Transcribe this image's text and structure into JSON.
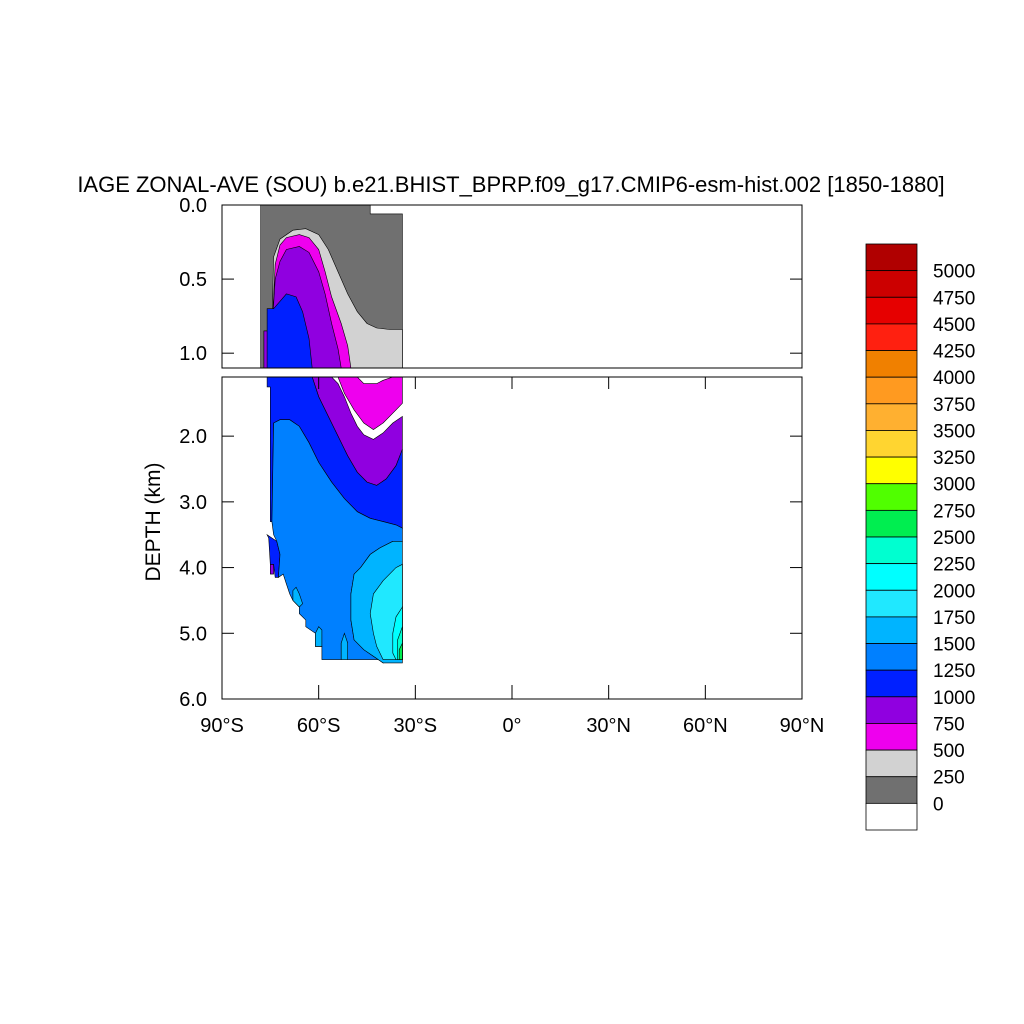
{
  "chart_data": {
    "type": "heatmap",
    "title": "IAGE ZONAL-AVE (SOU) b.e21.BHIST_BPRP.f09_g17.CMIP6-esm-hist.002 [1850-1880]",
    "xlabel": "",
    "ylabel": "DEPTH (km)",
    "xlim": [
      -90,
      90
    ],
    "upper_panel": {
      "ylim": [
        0.0,
        1.1
      ],
      "yticks": [
        {
          "value": 0.0,
          "label": "0.0"
        },
        {
          "value": 0.5,
          "label": "0.5"
        },
        {
          "value": 1.0,
          "label": "1.0"
        }
      ]
    },
    "lower_panel": {
      "ylim": [
        1.1,
        6.0
      ],
      "yticks": [
        {
          "value": 2.0,
          "label": "2.0"
        },
        {
          "value": 3.0,
          "label": "3.0"
        },
        {
          "value": 4.0,
          "label": "4.0"
        },
        {
          "value": 5.0,
          "label": "5.0"
        },
        {
          "value": 6.0,
          "label": "6.0"
        }
      ]
    },
    "xticks": [
      {
        "value": -90,
        "label": "90°S"
      },
      {
        "value": -60,
        "label": "60°S"
      },
      {
        "value": -30,
        "label": "30°S"
      },
      {
        "value": 0,
        "label": "0°"
      },
      {
        "value": 30,
        "label": "30°N"
      },
      {
        "value": 60,
        "label": "60°N"
      },
      {
        "value": 90,
        "label": "90°N"
      }
    ],
    "colorbar": {
      "labels": [
        "5000",
        "4750",
        "4500",
        "4250",
        "4000",
        "3750",
        "3500",
        "3250",
        "3000",
        "2750",
        "2500",
        "2250",
        "2000",
        "1750",
        "1500",
        "1250",
        "1000",
        "750",
        "500",
        "250",
        "0"
      ],
      "colors": [
        "#b00000",
        "#cc0000",
        "#e60000",
        "#ff2010",
        "#f08000",
        "#ff9a20",
        "#ffb030",
        "#ffd530",
        "#ffff00",
        "#50ff00",
        "#00ee50",
        "#00ffd0",
        "#00ffff",
        "#20e8ff",
        "#00b4ff",
        "#0080ff",
        "#0020ff",
        "#9000e0",
        "#ee00ee",
        "#d2d2d2",
        "#707070",
        "#ffffff"
      ]
    },
    "contour_regions": [
      {
        "level": "0-250",
        "color": "#707070",
        "points": [
          [
            -78,
            0.0
          ],
          [
            -44,
            0.0
          ],
          [
            -44,
            0.06
          ],
          [
            -34,
            0.06
          ],
          [
            -34,
            1.1
          ],
          [
            -78,
            1.1
          ]
        ]
      },
      {
        "level": "250-500",
        "color": "#d2d2d2",
        "points": [
          [
            -77,
            1.1
          ],
          [
            -77,
            0.85
          ],
          [
            -74.5,
            0.85
          ],
          [
            -74,
            0.35
          ],
          [
            -72,
            0.23
          ],
          [
            -68,
            0.17
          ],
          [
            -64,
            0.16
          ],
          [
            -60,
            0.2
          ],
          [
            -57,
            0.3
          ],
          [
            -54,
            0.45
          ],
          [
            -51,
            0.6
          ],
          [
            -48,
            0.72
          ],
          [
            -45,
            0.8
          ],
          [
            -42,
            0.83
          ],
          [
            -38,
            0.84
          ],
          [
            -35,
            0.84
          ],
          [
            -34,
            0.84
          ],
          [
            -34,
            1.1
          ]
        ]
      },
      {
        "level": "500-750",
        "color": "#ee00ee",
        "points": [
          [
            -77,
            1.1
          ],
          [
            -77,
            0.85
          ],
          [
            -74.5,
            0.85
          ],
          [
            -73.5,
            0.4
          ],
          [
            -72,
            0.27
          ],
          [
            -70,
            0.22
          ],
          [
            -66,
            0.2
          ],
          [
            -63,
            0.22
          ],
          [
            -60,
            0.3
          ],
          [
            -58,
            0.45
          ],
          [
            -56,
            0.62
          ],
          [
            -53,
            0.8
          ],
          [
            -51,
            0.95
          ],
          [
            -50,
            1.1
          ]
        ]
      },
      {
        "level": "500-750",
        "color": "#ee00ee",
        "points": [
          [
            -48,
            1.1
          ],
          [
            -46,
            1.2
          ],
          [
            -42,
            1.2
          ],
          [
            -40,
            1.15
          ],
          [
            -37,
            1.1
          ],
          [
            -35,
            1.1
          ],
          [
            -34,
            1.1
          ],
          [
            -34,
            1.5
          ],
          [
            -36,
            1.6
          ],
          [
            -40,
            1.8
          ],
          [
            -43,
            1.9
          ],
          [
            -46,
            1.8
          ],
          [
            -49,
            1.6
          ],
          [
            -52,
            1.35
          ],
          [
            -54,
            1.1
          ]
        ]
      },
      {
        "level": "750-1000",
        "color": "#9000e0",
        "points": [
          [
            -77,
            1.1
          ],
          [
            -77,
            0.85
          ],
          [
            -74.5,
            0.85
          ],
          [
            -73.5,
            0.5
          ],
          [
            -72,
            0.38
          ],
          [
            -70,
            0.3
          ],
          [
            -66,
            0.28
          ],
          [
            -63,
            0.32
          ],
          [
            -60,
            0.45
          ],
          [
            -58,
            0.6
          ],
          [
            -56,
            0.8
          ],
          [
            -54,
            0.97
          ],
          [
            -53,
            1.1
          ]
        ]
      },
      {
        "level": "750-1000",
        "color": "#9000e0",
        "points": [
          [
            -56,
            1.1
          ],
          [
            -54,
            1.2
          ],
          [
            -52,
            1.4
          ],
          [
            -50,
            1.65
          ],
          [
            -48,
            1.85
          ],
          [
            -46,
            1.98
          ],
          [
            -43,
            2.05
          ],
          [
            -40,
            1.95
          ],
          [
            -37,
            1.8
          ],
          [
            -34,
            1.7
          ],
          [
            -34,
            2.2
          ],
          [
            -36,
            2.45
          ],
          [
            -39,
            2.65
          ],
          [
            -42,
            2.75
          ],
          [
            -45,
            2.7
          ],
          [
            -48,
            2.55
          ],
          [
            -51,
            2.3
          ],
          [
            -54,
            2.0
          ],
          [
            -57,
            1.7
          ],
          [
            -60,
            1.4
          ],
          [
            -62,
            1.1
          ]
        ]
      },
      {
        "level": "750-1000",
        "color": "#9000e0",
        "points": [
          [
            -75,
            3.95
          ],
          [
            -74,
            3.95
          ],
          [
            -74,
            4.1
          ],
          [
            -75,
            4.1
          ]
        ]
      },
      {
        "level": "1000-1250",
        "color": "#0020ff",
        "points": [
          [
            -76,
            1.1
          ],
          [
            -76,
            0.7
          ],
          [
            -74,
            0.7
          ],
          [
            -72,
            0.65
          ],
          [
            -70,
            0.6
          ],
          [
            -67,
            0.62
          ],
          [
            -65,
            0.72
          ],
          [
            -63,
            0.9
          ],
          [
            -62,
            1.1
          ]
        ]
      },
      {
        "level": "1000-1250",
        "color": "#0020ff",
        "points": [
          [
            -76,
            1.1
          ],
          [
            -62,
            1.1
          ],
          [
            -60,
            1.4
          ],
          [
            -57,
            1.7
          ],
          [
            -54,
            2.0
          ],
          [
            -51,
            2.3
          ],
          [
            -48,
            2.55
          ],
          [
            -45,
            2.7
          ],
          [
            -42,
            2.75
          ],
          [
            -39,
            2.65
          ],
          [
            -36,
            2.45
          ],
          [
            -34,
            2.2
          ],
          [
            -34,
            3.4
          ],
          [
            -36,
            3.35
          ],
          [
            -40,
            3.3
          ],
          [
            -44,
            3.25
          ],
          [
            -48,
            3.15
          ],
          [
            -52,
            2.95
          ],
          [
            -56,
            2.7
          ],
          [
            -60,
            2.4
          ],
          [
            -63,
            2.1
          ],
          [
            -66,
            1.85
          ],
          [
            -69,
            1.75
          ],
          [
            -72,
            1.75
          ],
          [
            -74,
            1.8
          ],
          [
            -74.5,
            3.3
          ],
          [
            -75,
            3.3
          ],
          [
            -75,
            1.25
          ],
          [
            -76,
            1.25
          ]
        ]
      },
      {
        "level": "1000-1250",
        "color": "#0020ff",
        "points": [
          [
            -76,
            3.5
          ],
          [
            -75.5,
            3.55
          ],
          [
            -75,
            3.95
          ],
          [
            -74,
            3.95
          ],
          [
            -73.5,
            4.15
          ],
          [
            -72.5,
            4.15
          ],
          [
            -72,
            3.8
          ],
          [
            -73,
            3.6
          ]
        ]
      },
      {
        "level": "1250-1500",
        "color": "#0080ff",
        "points": [
          [
            -74.5,
            3.3
          ],
          [
            -74,
            1.8
          ],
          [
            -72,
            1.75
          ],
          [
            -69,
            1.75
          ],
          [
            -66,
            1.85
          ],
          [
            -63,
            2.1
          ],
          [
            -60,
            2.4
          ],
          [
            -56,
            2.7
          ],
          [
            -52,
            2.95
          ],
          [
            -48,
            3.15
          ],
          [
            -44,
            3.25
          ],
          [
            -40,
            3.3
          ],
          [
            -36,
            3.35
          ],
          [
            -34,
            3.4
          ],
          [
            -34,
            3.6
          ],
          [
            -37,
            3.6
          ],
          [
            -41,
            3.7
          ],
          [
            -44,
            3.8
          ],
          [
            -47,
            4.0
          ],
          [
            -49,
            4.1
          ],
          [
            -50,
            4.4
          ],
          [
            -50,
            4.8
          ],
          [
            -49,
            5.1
          ],
          [
            -46,
            5.25
          ],
          [
            -43,
            5.35
          ],
          [
            -40,
            5.45
          ],
          [
            -40,
            5.4
          ],
          [
            -51,
            5.4
          ],
          [
            -51,
            5.15
          ],
          [
            -53,
            5.15
          ],
          [
            -53,
            5.4
          ],
          [
            -59,
            5.4
          ],
          [
            -59,
            5.2
          ],
          [
            -61,
            5.2
          ],
          [
            -61,
            5.0
          ],
          [
            -64,
            4.9
          ],
          [
            -64,
            4.8
          ],
          [
            -66,
            4.7
          ],
          [
            -66,
            4.6
          ],
          [
            -68,
            4.5
          ],
          [
            -69,
            4.4
          ],
          [
            -70,
            4.25
          ],
          [
            -71,
            4.1
          ],
          [
            -72.5,
            4.15
          ],
          [
            -72,
            3.8
          ],
          [
            -73,
            3.6
          ],
          [
            -74,
            3.5
          ]
        ]
      },
      {
        "level": "1500-1750",
        "color": "#00b4ff",
        "points": [
          [
            -66,
            4.6
          ],
          [
            -65,
            4.55
          ],
          [
            -66,
            4.4
          ],
          [
            -67,
            4.3
          ],
          [
            -68,
            4.35
          ],
          [
            -68,
            4.5
          ]
        ]
      },
      {
        "level": "1500-1750",
        "color": "#00b4ff",
        "points": [
          [
            -61,
            5.0
          ],
          [
            -60,
            4.9
          ],
          [
            -59,
            4.95
          ],
          [
            -59,
            5.2
          ],
          [
            -61,
            5.2
          ]
        ]
      },
      {
        "level": "1500-1750",
        "color": "#00b4ff",
        "points": [
          [
            -53,
            5.15
          ],
          [
            -52,
            5.0
          ],
          [
            -51,
            5.15
          ],
          [
            -51,
            5.4
          ],
          [
            -53,
            5.4
          ]
        ]
      },
      {
        "level": "1500-1750",
        "color": "#00b4ff",
        "points": [
          [
            -34,
            3.6
          ],
          [
            -37,
            3.6
          ],
          [
            -41,
            3.7
          ],
          [
            -44,
            3.8
          ],
          [
            -47,
            4.0
          ],
          [
            -49,
            4.1
          ],
          [
            -50,
            4.4
          ],
          [
            -50,
            4.8
          ],
          [
            -49,
            5.1
          ],
          [
            -46,
            5.25
          ],
          [
            -43,
            5.35
          ],
          [
            -40,
            5.45
          ],
          [
            -34,
            5.45
          ]
        ]
      },
      {
        "level": "1750-2000",
        "color": "#20e8ff",
        "points": [
          [
            -34,
            3.95
          ],
          [
            -36,
            4.0
          ],
          [
            -40,
            4.2
          ],
          [
            -43,
            4.4
          ],
          [
            -44,
            4.7
          ],
          [
            -43,
            5.0
          ],
          [
            -42,
            5.2
          ],
          [
            -40,
            5.4
          ],
          [
            -34,
            5.4
          ]
        ]
      },
      {
        "level": "2000-2250",
        "color": "#00ffff",
        "points": [
          [
            -34,
            4.6
          ],
          [
            -36,
            4.75
          ],
          [
            -37,
            5.0
          ],
          [
            -37,
            5.3
          ],
          [
            -36,
            5.4
          ],
          [
            -34,
            5.4
          ]
        ]
      },
      {
        "level": "2250-2500",
        "color": "#00ffd0",
        "points": [
          [
            -34,
            4.9
          ],
          [
            -35.5,
            5.1
          ],
          [
            -35.5,
            5.4
          ],
          [
            -34,
            5.4
          ]
        ]
      },
      {
        "level": "2500-2750",
        "color": "#00ee50",
        "points": [
          [
            -34,
            5.15
          ],
          [
            -35,
            5.25
          ],
          [
            -35,
            5.4
          ],
          [
            -34,
            5.4
          ]
        ]
      }
    ]
  }
}
